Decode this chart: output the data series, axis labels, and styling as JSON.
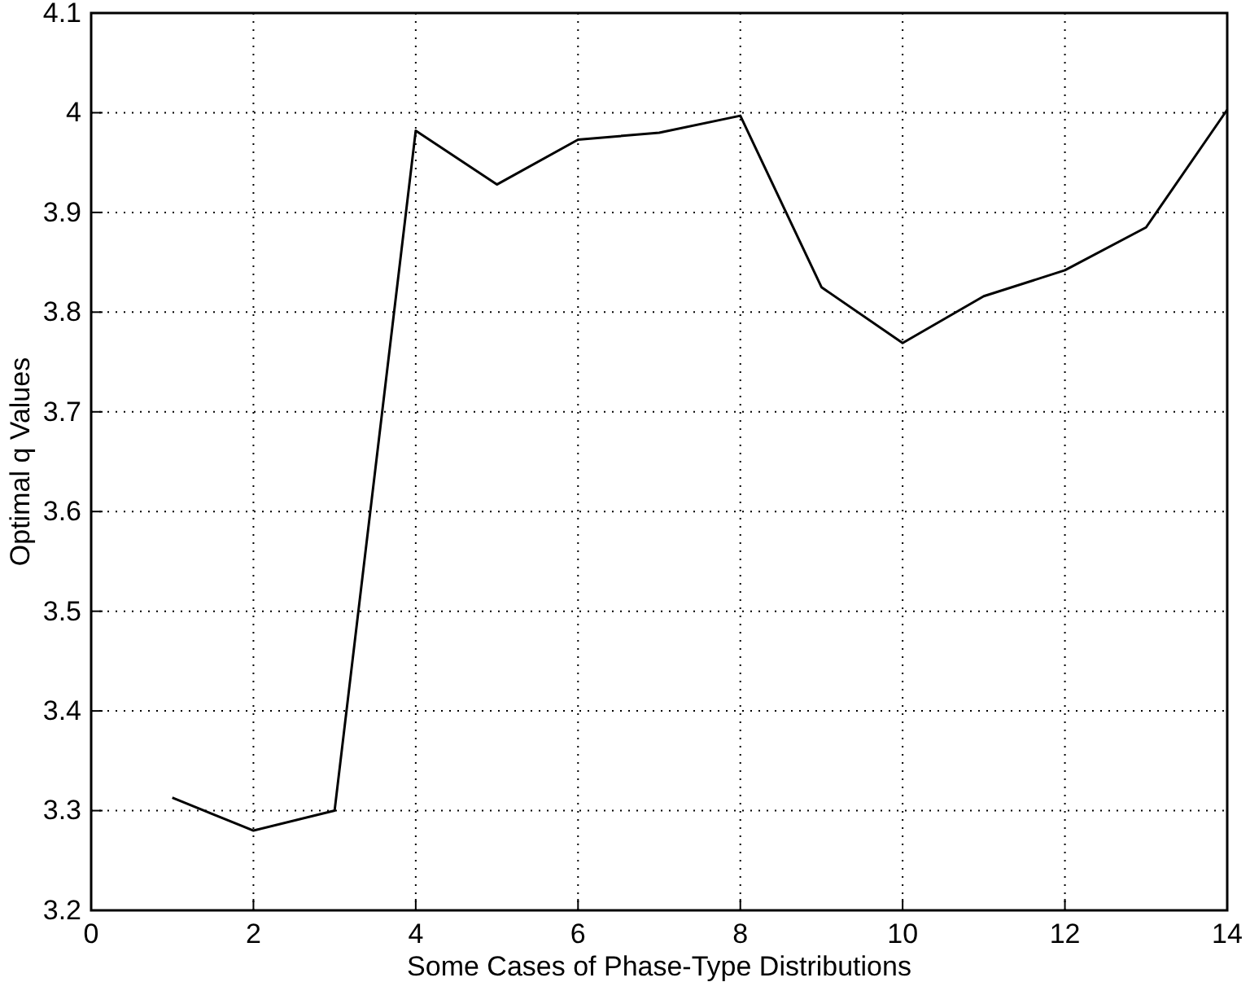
{
  "chart_data": {
    "type": "line",
    "xlabel": "Some Cases of Phase-Type  Distributions",
    "ylabel": "Optimal q Values",
    "x": [
      1,
      2,
      3,
      4,
      5,
      6,
      7,
      8,
      9,
      10,
      11,
      12,
      13,
      14
    ],
    "series": [
      {
        "color": "#000000",
        "values": [
          3.313,
          3.28,
          3.3,
          3.982,
          3.928,
          3.973,
          3.98,
          3.997,
          3.825,
          3.769,
          3.816,
          3.842,
          3.885,
          4.003
        ]
      }
    ],
    "xlim": [
      0,
      14
    ],
    "xticks": [
      0,
      2,
      4,
      6,
      8,
      10,
      12,
      14
    ],
    "ylim": [
      3.2,
      4.1
    ],
    "yticks": [
      3.2,
      3.3,
      3.4,
      3.5,
      3.6,
      3.7,
      3.8,
      3.9,
      4,
      4.1
    ],
    "grid": true,
    "line_style": "solid",
    "marker": "none"
  }
}
